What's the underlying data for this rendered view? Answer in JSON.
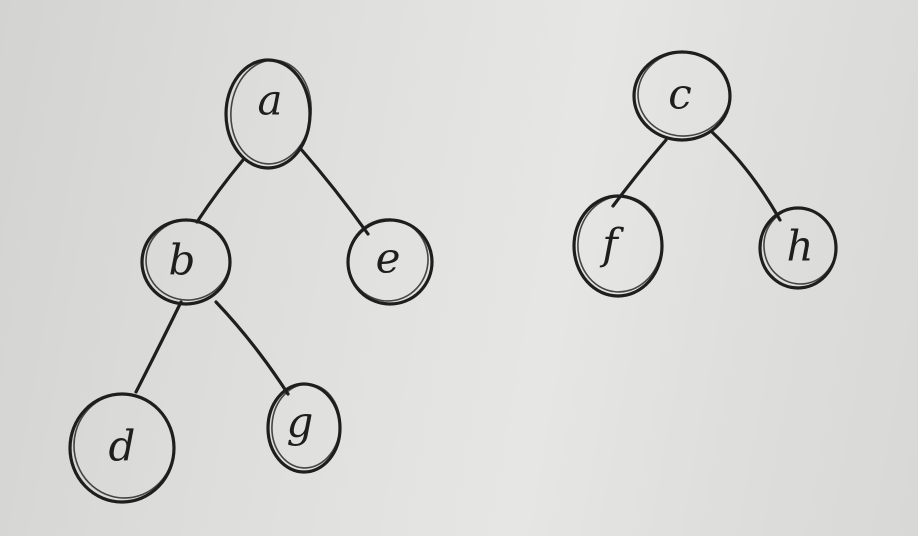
{
  "diagram": {
    "trees": [
      {
        "nodes": [
          "a",
          "b",
          "e",
          "d",
          "g"
        ],
        "edges": [
          [
            "a",
            "b"
          ],
          [
            "a",
            "e"
          ],
          [
            "b",
            "d"
          ],
          [
            "b",
            "g"
          ]
        ]
      },
      {
        "nodes": [
          "c",
          "f",
          "h"
        ],
        "edges": [
          [
            "c",
            "f"
          ],
          [
            "c",
            "h"
          ]
        ]
      }
    ],
    "labels": {
      "a": "a",
      "b": "b",
      "c": "c",
      "d": "d",
      "e": "e",
      "f": "f",
      "g": "g",
      "h": "h"
    }
  }
}
